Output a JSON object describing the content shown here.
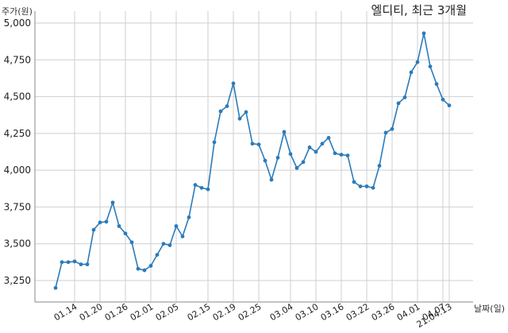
{
  "chart_data": {
    "type": "line",
    "title": "엘디티, 최근 3개월",
    "xlabel": "날짜(일)",
    "ylabel": "주가(원)",
    "ylim": [
      3150,
      5000
    ],
    "yticks": [
      3250,
      3500,
      3750,
      4000,
      4250,
      4500,
      4750,
      5000
    ],
    "ytick_labels": [
      "3,250",
      "3,500",
      "3,750",
      "4,000",
      "4,250",
      "4,500",
      "4,750",
      "5,000"
    ],
    "grid": true,
    "line_color": "#2b7bba",
    "x_tick_index": [
      3,
      7,
      11,
      15,
      19,
      24,
      28,
      32,
      37,
      41,
      45,
      49,
      53,
      57,
      61
    ],
    "x_tick_labels": [
      "01.14",
      "01.20",
      "01.26",
      "02.01",
      "02.05",
      "02.15",
      "02.19",
      "02.25",
      "03.04",
      "03.10",
      "03.16",
      "03.22",
      "03.26",
      "04.01",
      "04.07"
    ],
    "x_last_label": "21.04.13",
    "series": [
      {
        "values": [
          3200,
          3375,
          3375,
          3380,
          3360,
          3360,
          3595,
          3645,
          3650,
          3780,
          3620,
          3570,
          3510,
          3330,
          3320,
          3350,
          3425,
          3500,
          3490,
          3620,
          3550,
          3680,
          3900,
          3880,
          3870,
          4190,
          4400,
          4435,
          4590,
          4350,
          4395,
          4180,
          4175,
          4065,
          3935,
          4085,
          4260,
          4110,
          4015,
          4055,
          4155,
          4125,
          4180,
          4220,
          4115,
          4105,
          4100,
          3920,
          3890,
          3890,
          3880,
          4030,
          4255,
          4280,
          4455,
          4495,
          4665,
          4735,
          4930,
          4705,
          4585,
          4480,
          4440
        ]
      }
    ]
  }
}
